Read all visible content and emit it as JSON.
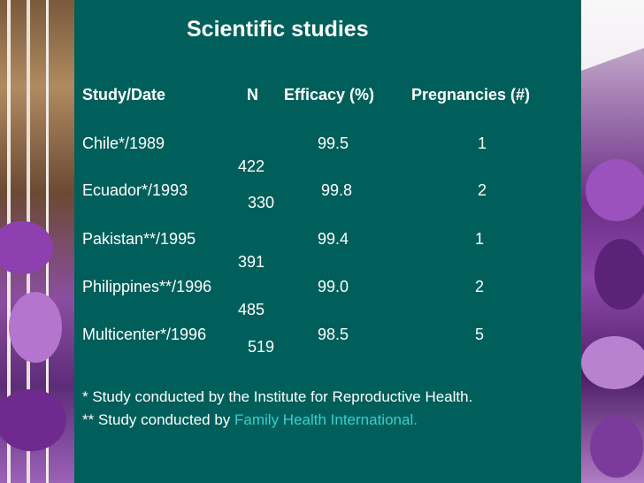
{
  "slide": {
    "title": "Scientific studies",
    "headers": {
      "study": "Study/Date",
      "n": "N",
      "efficacy": "Efficacy (%)",
      "pregnancies": "Pregnancies (#)"
    },
    "rows": [
      {
        "study": "Chile*/1989",
        "n": "422",
        "efficacy": "99.5",
        "pregnancies": "1"
      },
      {
        "study": "Ecuador*/1993",
        "n": "330",
        "efficacy": "99.8",
        "pregnancies": "2"
      },
      {
        "study": "Pakistan**/1995",
        "n": "391",
        "efficacy": "99.4",
        "pregnancies": "1"
      },
      {
        "study": "Philippines**/1996",
        "n": "485",
        "efficacy": "99.0",
        "pregnancies": "2"
      },
      {
        "study": "Multicenter*/1996",
        "n": "519",
        "efficacy": "98.5",
        "pregnancies": "5"
      }
    ],
    "footnotes": {
      "single": "* Study conducted by the Institute for Reproductive Health.",
      "double_prefix": "** Study conducted by ",
      "double_link": "Family Health International."
    }
  },
  "colors": {
    "panel": "#005f5a",
    "text": "#ffffff",
    "link": "#39d0cf"
  }
}
